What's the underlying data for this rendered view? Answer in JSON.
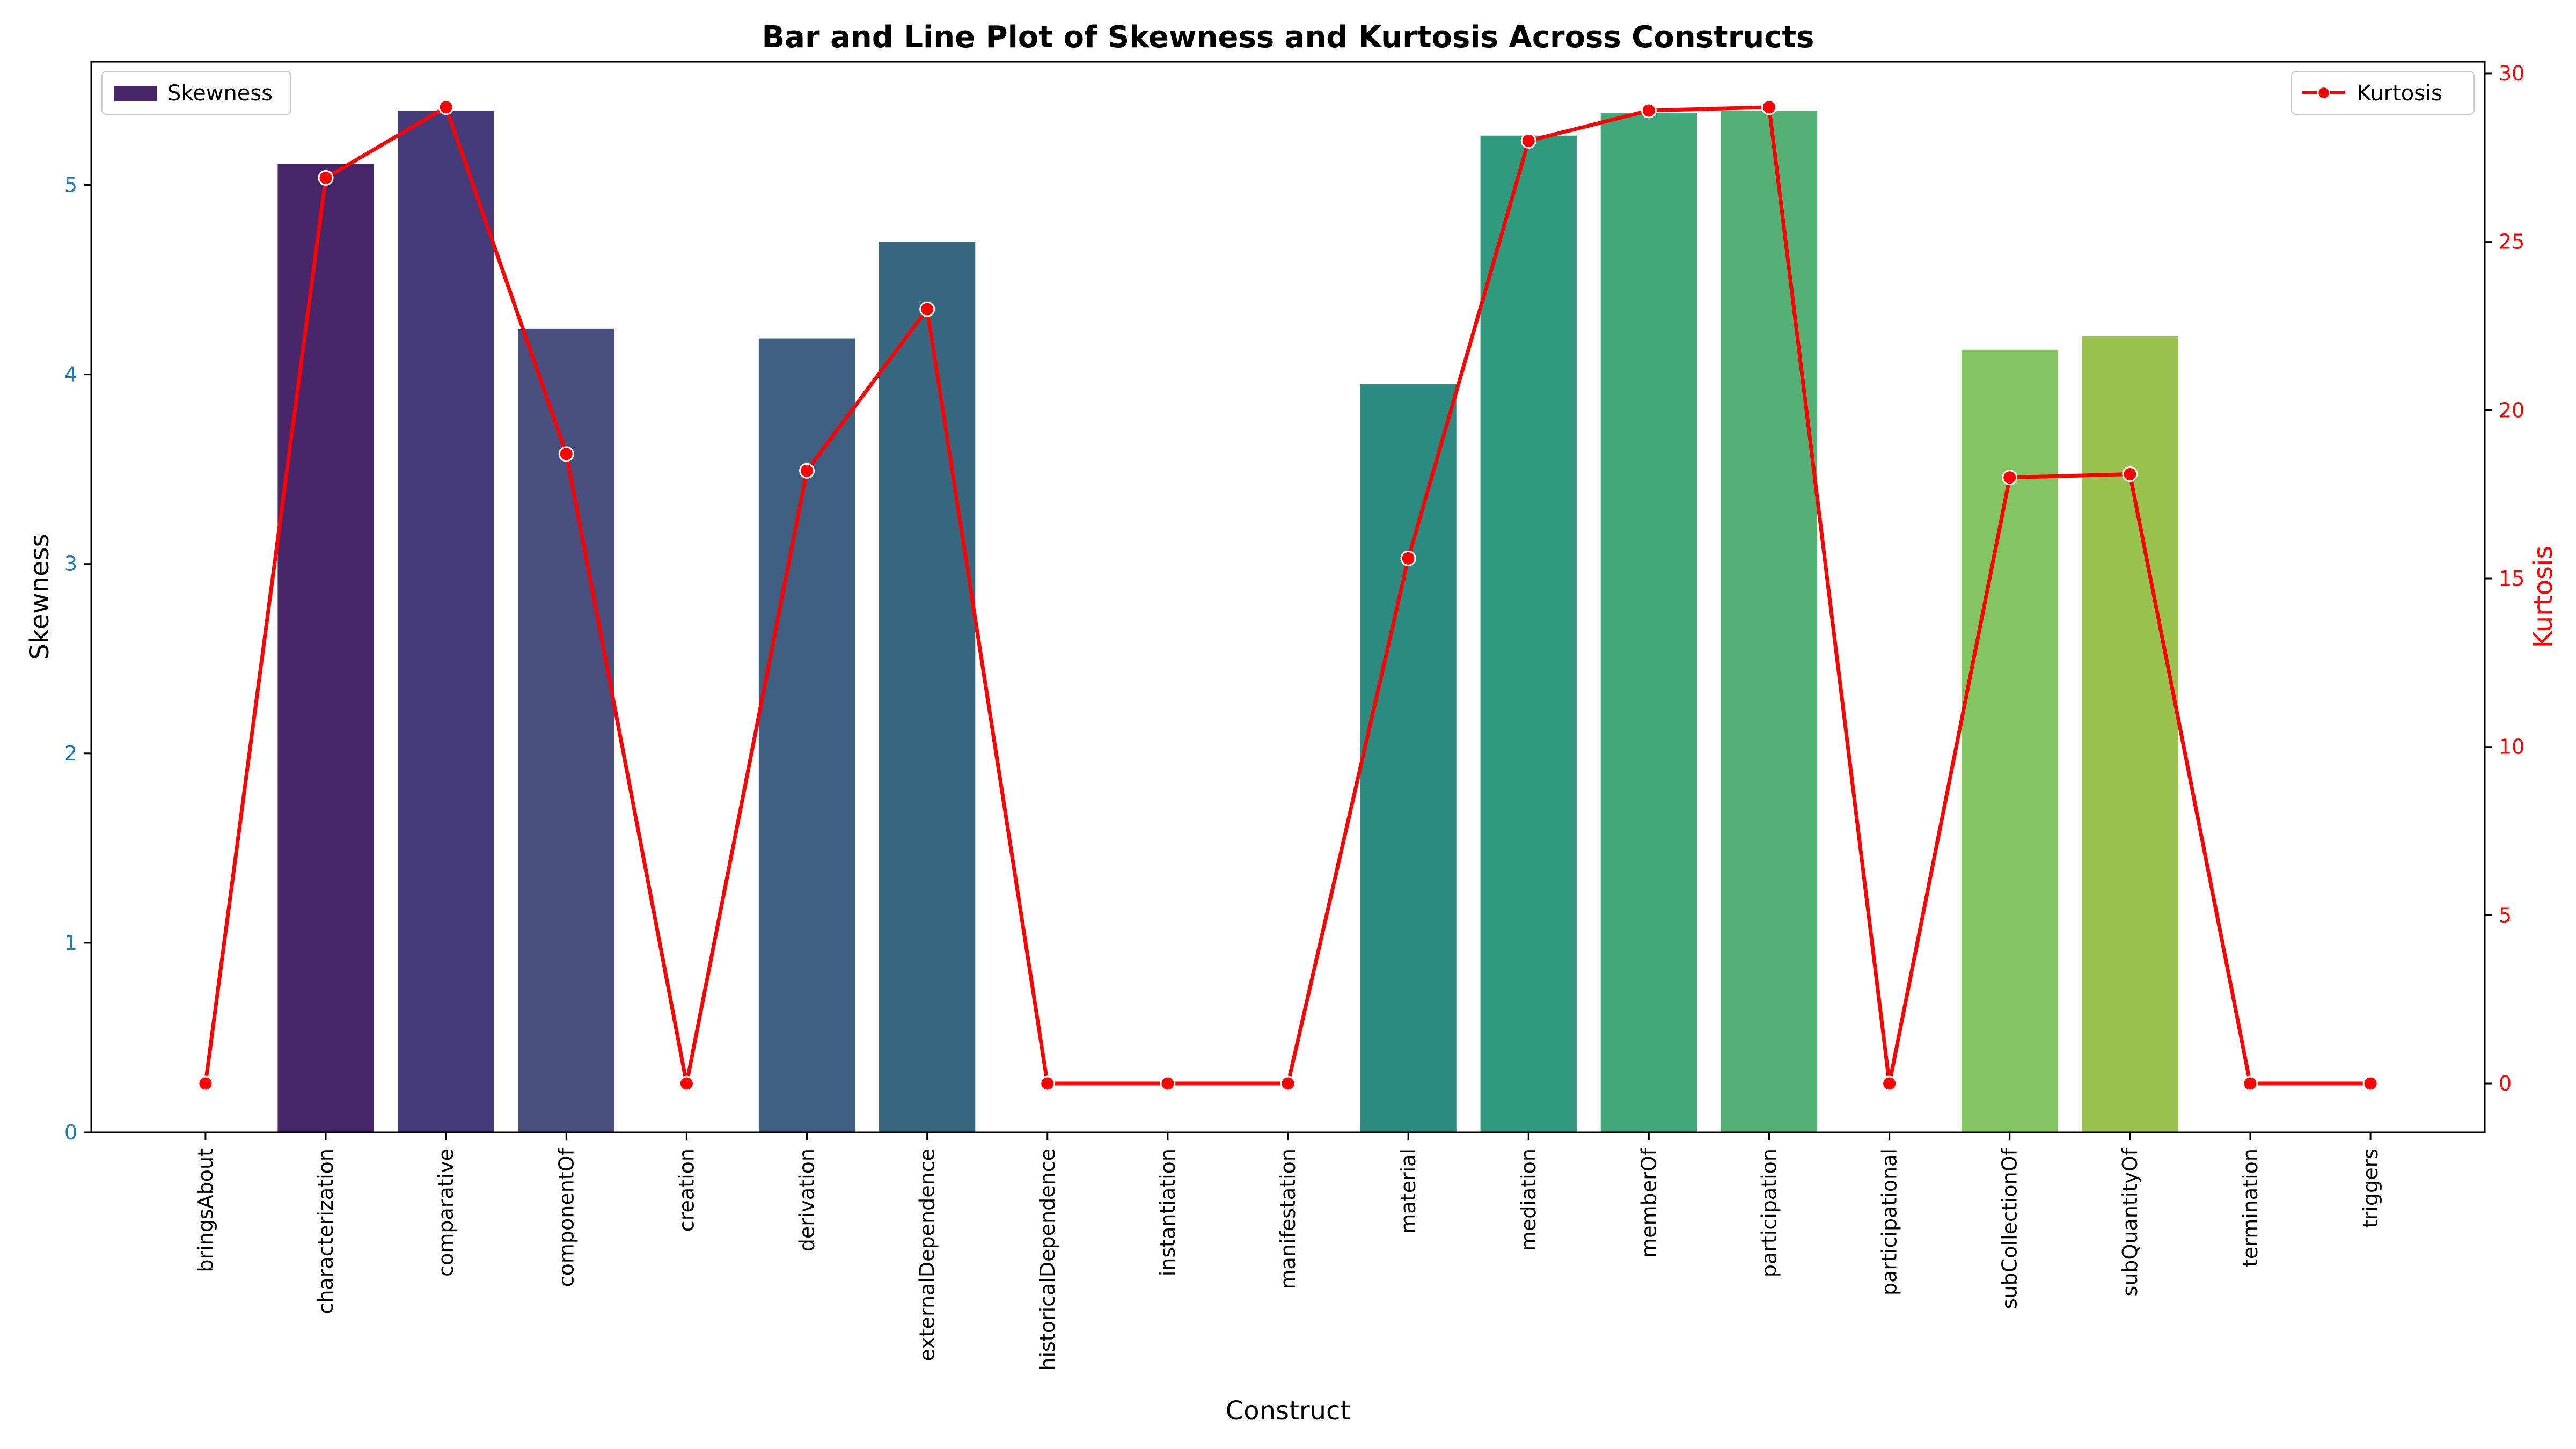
{
  "chart_data": {
    "type": "bar+line",
    "title": "Bar and Line Plot of Skewness and Kurtosis Across Constructs",
    "xlabel": "Construct",
    "ylabel_left": "Skewness",
    "ylabel_right": "Kurtosis",
    "categories": [
      "bringsAbout",
      "characterization",
      "comparative",
      "componentOf",
      "creation",
      "derivation",
      "externalDependence",
      "historicalDependence",
      "instantiation",
      "manifestation",
      "material",
      "mediation",
      "memberOf",
      "participation",
      "participational",
      "subCollectionOf",
      "subQuantityOf",
      "termination",
      "triggers"
    ],
    "series": [
      {
        "name": "Skewness",
        "type": "bar",
        "axis": "left",
        "values": [
          0,
          5.11,
          5.39,
          4.24,
          0,
          4.19,
          4.7,
          0,
          0,
          0,
          3.95,
          5.26,
          5.38,
          5.39,
          0,
          4.13,
          4.2,
          0,
          0
        ],
        "colors": [
          "#440154",
          "#48266a",
          "#453a7a",
          "#484f7e",
          "#3a5e85",
          "#3f5f81",
          "#37687f",
          "#2e7280",
          "#2a7c86",
          "#2a858a",
          "#2c8b80",
          "#309a7e",
          "#41a67a",
          "#54b074",
          "#6cbe64",
          "#82c460",
          "#99c24f",
          "#afd348",
          "#c9dd3f"
        ]
      },
      {
        "name": "Kurtosis",
        "type": "line",
        "axis": "right",
        "color": "#ff0000",
        "values": [
          0,
          26.9,
          29.0,
          18.7,
          0,
          18.2,
          23.0,
          0,
          0,
          0,
          15.6,
          28.0,
          28.9,
          29.0,
          0,
          18.0,
          18.1,
          0,
          0
        ]
      }
    ],
    "ylim_left": [
      0,
      5.65
    ],
    "yticks_left": [
      "0",
      "1",
      "2",
      "3",
      "4",
      "5"
    ],
    "ylim_right": [
      -1.45,
      30.35
    ],
    "yticks_right": [
      "0",
      "5",
      "10",
      "15",
      "20",
      "25",
      "30"
    ],
    "legend_left": {
      "label": "Skewness",
      "placement": "upper-left"
    },
    "legend_right": {
      "label": "Kurtosis",
      "placement": "upper-right"
    },
    "grid": false
  }
}
